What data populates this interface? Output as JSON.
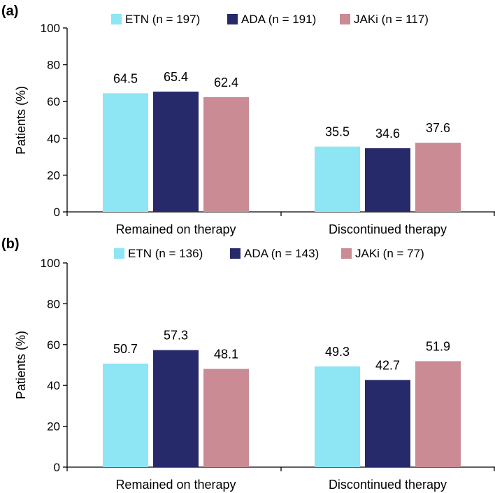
{
  "chart_data": [
    {
      "type": "bar",
      "panel": "(a)",
      "categories": [
        "Remained on therapy",
        "Discontinued therapy"
      ],
      "series": [
        {
          "name": "ETN (n = 197)",
          "color": "#8ee5f3",
          "values": [
            64.5,
            35.5
          ],
          "labels": [
            "64.5",
            "35.5"
          ]
        },
        {
          "name": "ADA (n = 191)",
          "color": "#272a6a",
          "values": [
            65.4,
            34.6
          ],
          "labels": [
            "65.4",
            "34.6"
          ]
        },
        {
          "name": "JAKi (n = 117)",
          "color": "#ca8b95",
          "values": [
            62.4,
            37.6
          ],
          "labels": [
            "62.4",
            "37.6"
          ]
        }
      ],
      "ylabel": "Patients (%)",
      "xlabel": "",
      "ylim": [
        0,
        100
      ],
      "yticks": [
        "0",
        "20",
        "40",
        "60",
        "80",
        "100"
      ],
      "legend": "top"
    },
    {
      "type": "bar",
      "panel": "(b)",
      "categories": [
        "Remained on therapy",
        "Discontinued therapy"
      ],
      "series": [
        {
          "name": "ETN (n = 136)",
          "color": "#8ee5f3",
          "values": [
            50.7,
            49.3
          ],
          "labels": [
            "50.7",
            "49.3"
          ]
        },
        {
          "name": "ADA (n = 143)",
          "color": "#272a6a",
          "values": [
            57.3,
            42.7
          ],
          "labels": [
            "57.3",
            "42.7"
          ]
        },
        {
          "name": "JAKi (n = 77)",
          "color": "#ca8b95",
          "values": [
            48.1,
            51.9
          ],
          "labels": [
            "48.1",
            "51.9"
          ]
        }
      ],
      "ylabel": "Patients (%)",
      "xlabel": "",
      "ylim": [
        0,
        100
      ],
      "yticks": [
        "0",
        "20",
        "40",
        "60",
        "80",
        "100"
      ],
      "legend": "top"
    }
  ]
}
